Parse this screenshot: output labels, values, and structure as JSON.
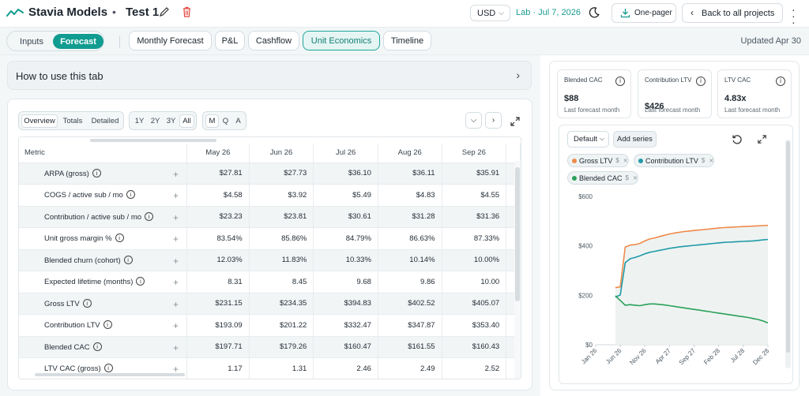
{
  "header": {
    "app_name": "Stavia Models",
    "separator": "•",
    "project_name": "Test 1",
    "currency": "USD",
    "lab_date": "Lab · Jul 7, 2026",
    "onepager_label": "One-pager",
    "back_label": "Back to all projects"
  },
  "mode_toggle": {
    "inputs": "Inputs",
    "forecast": "Forecast"
  },
  "tabs": [
    {
      "label": "Monthly Forecast"
    },
    {
      "label": "P&L"
    },
    {
      "label": "Cashflow"
    },
    {
      "label": "Unit Economics",
      "active": true
    },
    {
      "label": "Timeline"
    }
  ],
  "updated": "Updated Apr 30",
  "howto": {
    "label": "How to use this tab"
  },
  "table_controls": {
    "views": [
      "Overview",
      "Totals",
      "Detailed"
    ],
    "active_view": "Overview",
    "ranges": [
      "1Y",
      "2Y",
      "3Y",
      "All"
    ],
    "active_range": "All",
    "granularity": [
      "M",
      "Q",
      "A"
    ],
    "active_granularity": "M"
  },
  "table": {
    "metric_header": "Metric",
    "columns": [
      "May 26",
      "Jun 26",
      "Jul 26",
      "Aug 26",
      "Sep 26"
    ],
    "rows": [
      {
        "metric": "ARPA (gross)",
        "values": [
          "$27.81",
          "$27.73",
          "$36.10",
          "$36.11",
          "$35.91"
        ]
      },
      {
        "metric": "COGS / active sub / mo",
        "values": [
          "$4.58",
          "$3.92",
          "$5.49",
          "$4.83",
          "$4.55"
        ]
      },
      {
        "metric": "Contribution / active sub / mo",
        "values": [
          "$23.23",
          "$23.81",
          "$30.61",
          "$31.28",
          "$31.36"
        ]
      },
      {
        "metric": "Unit gross margin %",
        "values": [
          "83.54%",
          "85.86%",
          "84.79%",
          "86.63%",
          "87.33%"
        ]
      },
      {
        "metric": "Blended churn (cohort)",
        "values": [
          "12.03%",
          "11.83%",
          "10.33%",
          "10.14%",
          "10.00%"
        ]
      },
      {
        "metric": "Expected lifetime (months)",
        "values": [
          "8.31",
          "8.45",
          "9.68",
          "9.86",
          "10.00"
        ]
      },
      {
        "metric": "Gross LTV",
        "values": [
          "$231.15",
          "$234.35",
          "$394.83",
          "$402.52",
          "$405.07"
        ]
      },
      {
        "metric": "Contribution LTV",
        "values": [
          "$193.09",
          "$201.22",
          "$332.47",
          "$347.87",
          "$353.40"
        ]
      },
      {
        "metric": "Blended CAC",
        "values": [
          "$197.71",
          "$179.26",
          "$160.47",
          "$161.55",
          "$160.43"
        ]
      },
      {
        "metric": "LTV CAC (gross)",
        "values": [
          "1.17",
          "1.31",
          "2.46",
          "2.49",
          "2.52"
        ]
      }
    ]
  },
  "kpis": [
    {
      "label": "Blended CAC",
      "value": "$88",
      "sub": "Last forecast month"
    },
    {
      "label": "Contribution LTV",
      "value": "$426",
      "sub": "Last forecast month"
    },
    {
      "label": "LTV CAC",
      "value": "4.83x",
      "sub": "Last forecast month"
    }
  ],
  "chart_controls": {
    "default_label": "Default",
    "add_series_label": "Add series"
  },
  "chips": [
    {
      "label": "Gross LTV",
      "unit": "$",
      "color": "#f08a4b"
    },
    {
      "label": "Contribution LTV",
      "unit": "$",
      "color": "#1f9aa8"
    },
    {
      "label": "Blended CAC",
      "unit": "$",
      "color": "#2aa05a"
    }
  ],
  "chart_data": {
    "type": "line",
    "x": [
      "Jan 26",
      "Feb 26",
      "Mar 26",
      "Apr 26",
      "May 26",
      "Jun 26",
      "Jul 26",
      "Aug 26",
      "Sep 26",
      "Oct 26",
      "Nov 26",
      "Dec 26",
      "Jan 27",
      "Feb 27",
      "Mar 27",
      "Apr 27",
      "May 27",
      "Jun 27",
      "Jul 27",
      "Aug 27",
      "Sep 27",
      "Oct 27",
      "Nov 27",
      "Dec 27",
      "Jan 28",
      "Feb 28",
      "Mar 28",
      "Apr 28",
      "May 28",
      "Jun 28",
      "Jul 28",
      "Aug 28",
      "Sep 28",
      "Oct 28",
      "Nov 28",
      "Dec 28"
    ],
    "xtick_labels": [
      "Jan 26",
      "Jun 26",
      "Nov 26",
      "Apr 27",
      "Sep 27",
      "Feb 28",
      "Jul 28",
      "Dec 28"
    ],
    "ytick_labels": [
      "$0",
      "$200",
      "$400",
      "$600"
    ],
    "ylim": [
      0,
      600
    ],
    "series": [
      {
        "name": "Gross LTV",
        "color": "#f08a4b",
        "values": [
          null,
          null,
          null,
          null,
          231,
          234,
          395,
          403,
          405,
          410,
          420,
          428,
          432,
          438,
          443,
          448,
          452,
          455,
          458,
          460,
          462,
          464,
          466,
          468,
          470,
          472,
          474,
          475,
          476,
          477,
          478,
          479,
          480,
          481,
          482,
          483
        ]
      },
      {
        "name": "Contribution LTV",
        "color": "#1f9aa8",
        "values": [
          null,
          null,
          null,
          null,
          193,
          201,
          332,
          348,
          353,
          360,
          368,
          374,
          378,
          382,
          386,
          390,
          393,
          396,
          398,
          400,
          402,
          404,
          406,
          408,
          410,
          412,
          414,
          415,
          416,
          417,
          418,
          419,
          420,
          422,
          424,
          426
        ]
      },
      {
        "name": "Blended CAC",
        "color": "#2aa05a",
        "values": [
          null,
          null,
          null,
          null,
          198,
          179,
          160,
          162,
          160,
          158,
          162,
          165,
          165,
          163,
          161,
          158,
          155,
          152,
          149,
          146,
          143,
          140,
          137,
          134,
          131,
          128,
          125,
          122,
          119,
          116,
          113,
          110,
          106,
          102,
          96,
          88
        ]
      }
    ],
    "grid": false,
    "legend": "top (chips)"
  }
}
